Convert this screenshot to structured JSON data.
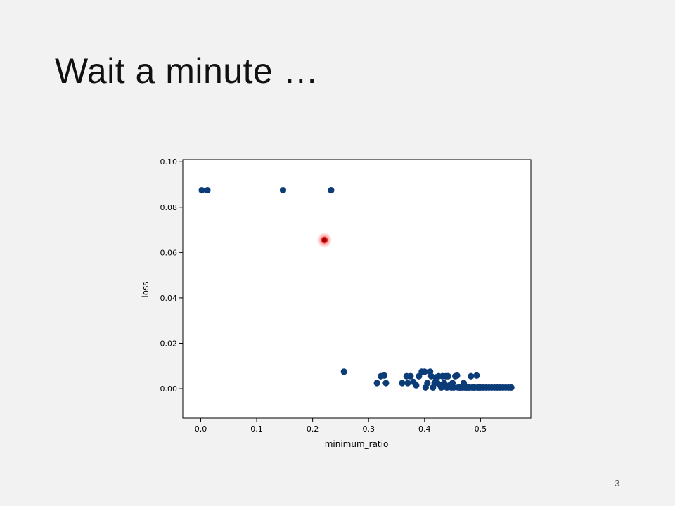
{
  "slide": {
    "title": "Wait a minute …",
    "page_number": "3"
  },
  "chart_data": {
    "type": "scatter",
    "title": "",
    "xlabel": "minimum_ratio",
    "ylabel": "loss",
    "xlim": [
      -0.032,
      0.59
    ],
    "ylim": [
      -0.013,
      0.101
    ],
    "xticks": [
      0.0,
      0.1,
      0.2,
      0.3,
      0.4,
      0.5
    ],
    "xtick_labels": [
      "0.0",
      "0.1",
      "0.2",
      "0.3",
      "0.4",
      "0.5"
    ],
    "yticks": [
      0.0,
      0.02,
      0.04,
      0.06,
      0.08,
      0.1
    ],
    "ytick_labels": [
      "0.00",
      "0.02",
      "0.04",
      "0.06",
      "0.08",
      "0.10"
    ],
    "grid": false,
    "colors": {
      "points": "#0b3c78",
      "highlight_fill": "#8b0000",
      "highlight_glow": "#ff2a2a"
    },
    "series": [
      {
        "x": [
          0.002,
          0.012,
          0.147,
          0.233,
          0.256,
          0.315,
          0.322,
          0.328,
          0.331,
          0.36,
          0.368,
          0.37,
          0.375,
          0.38,
          0.385,
          0.39,
          0.395,
          0.4,
          0.402,
          0.405,
          0.41,
          0.412,
          0.415,
          0.418,
          0.42,
          0.423,
          0.425,
          0.428,
          0.43,
          0.432,
          0.435,
          0.438,
          0.44,
          0.442,
          0.445,
          0.448,
          0.45,
          0.452,
          0.455,
          0.458,
          0.46,
          0.463,
          0.465,
          0.468,
          0.47,
          0.472,
          0.475,
          0.478,
          0.48,
          0.483,
          0.485,
          0.488,
          0.49,
          0.493,
          0.495,
          0.498,
          0.5,
          0.505,
          0.51,
          0.515,
          0.52,
          0.525,
          0.53,
          0.535,
          0.54,
          0.545,
          0.55,
          0.555
        ],
        "y": [
          0.0875,
          0.0875,
          0.0875,
          0.0875,
          0.0075,
          0.0025,
          0.0055,
          0.0058,
          0.0025,
          0.0025,
          0.0055,
          0.0025,
          0.0055,
          0.003,
          0.0015,
          0.0055,
          0.0075,
          0.0075,
          0.0005,
          0.0025,
          0.0075,
          0.0055,
          0.0005,
          0.0025,
          0.005,
          0.0025,
          0.0055,
          0.0015,
          0.0005,
          0.0055,
          0.0025,
          0.0055,
          0.0005,
          0.0055,
          0.0015,
          0.0005,
          0.0025,
          0.0005,
          0.0055,
          0.0058,
          0.0005,
          0.0005,
          0.0005,
          0.0005,
          0.0025,
          0.0005,
          0.0005,
          0.0005,
          0.0005,
          0.0055,
          0.0005,
          0.0005,
          0.0005,
          0.0058,
          0.0005,
          0.0005,
          0.0005,
          0.0005,
          0.0005,
          0.0005,
          0.0005,
          0.0005,
          0.0005,
          0.0005,
          0.0005,
          0.0005,
          0.0005,
          0.0005
        ]
      }
    ],
    "highlight_point": {
      "x": 0.221,
      "y": 0.0655
    }
  }
}
